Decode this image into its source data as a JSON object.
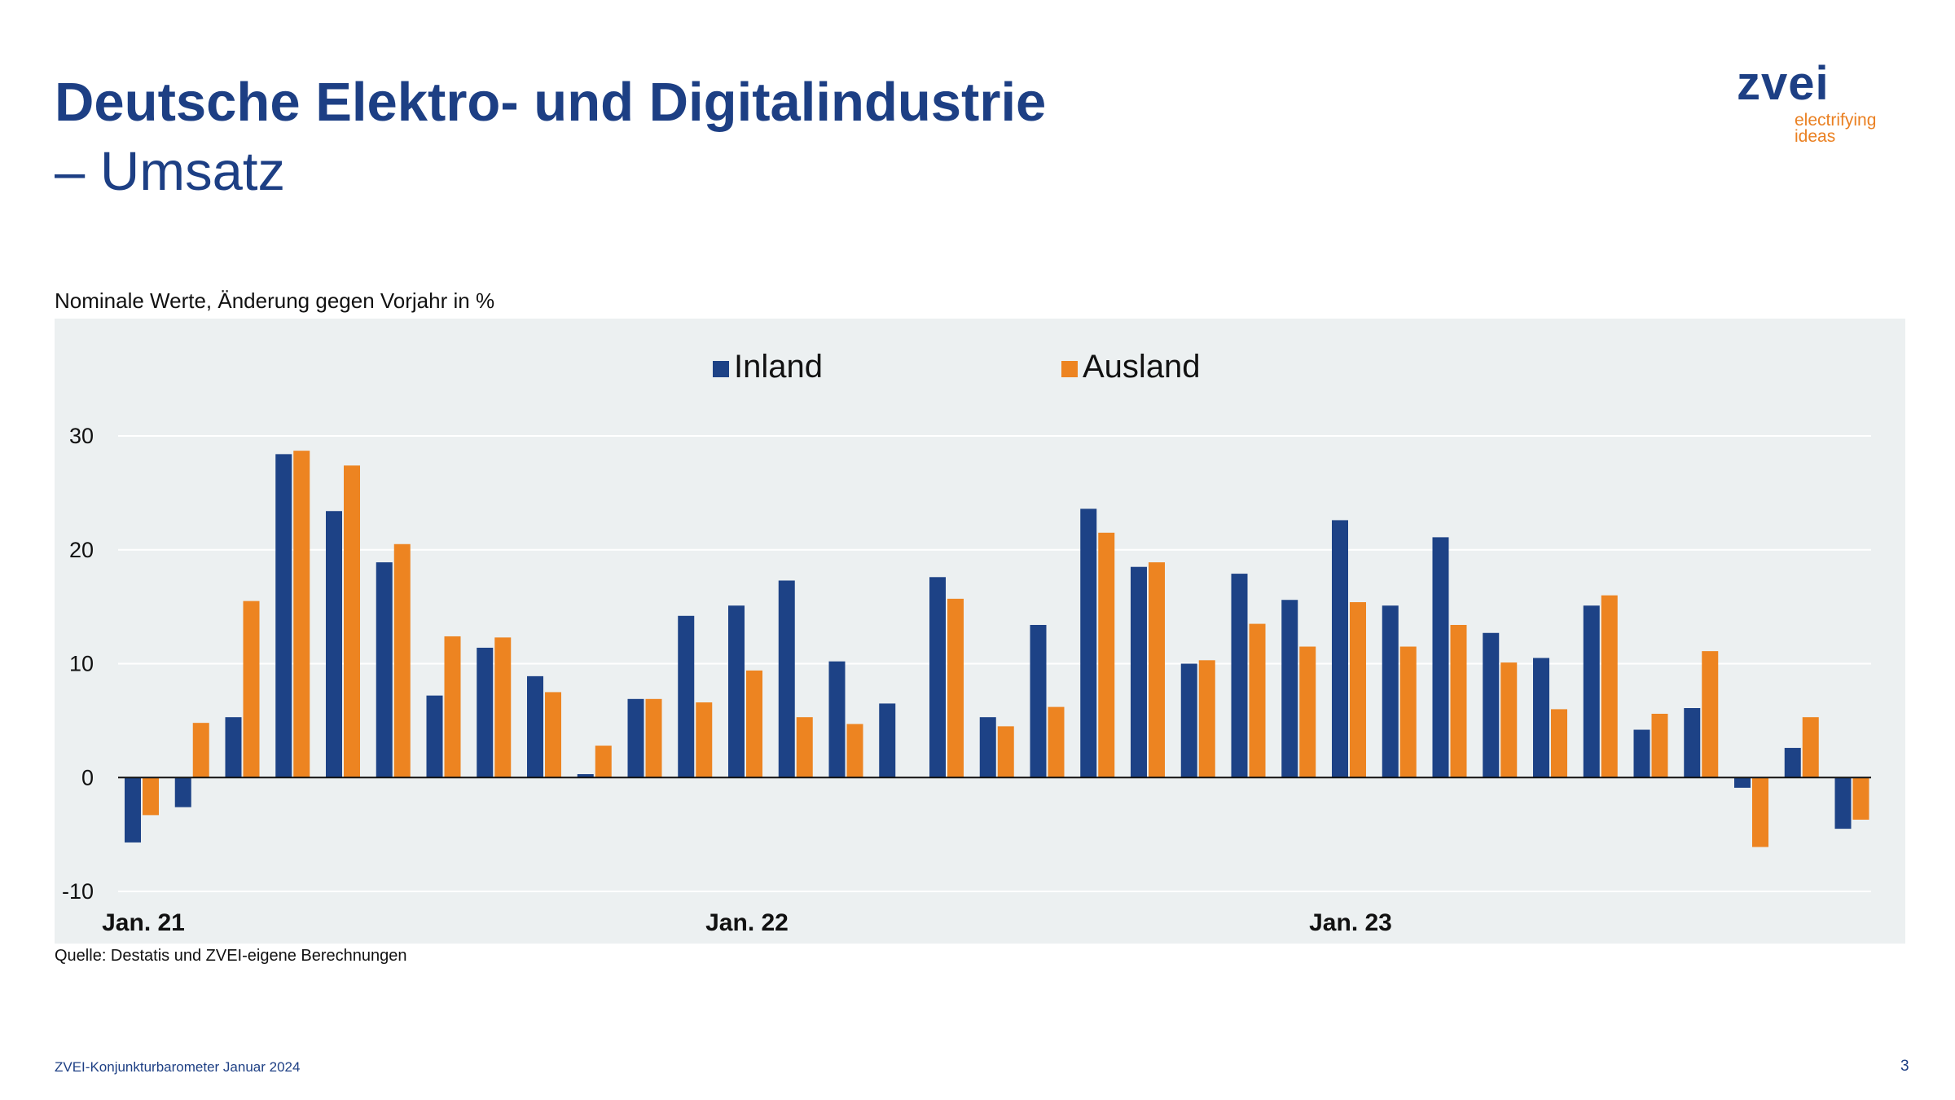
{
  "page": {
    "title_line1": "Deutsche Elektro- und Digitalindustrie",
    "title_line2": "– Umsatz",
    "subtitle": "Nominale Werte, Änderung gegen Vorjahr in %",
    "source": "Quelle: Destatis und ZVEI-eigene Berechnungen",
    "footer": "ZVEI-Konjunkturbarometer Januar 2024",
    "page_number": "3"
  },
  "logo": {
    "name": "zvei",
    "tagline_line1": "electrifying",
    "tagline_line2": "ideas"
  },
  "colors": {
    "inland": "#1d4286",
    "ausland": "#ed8421",
    "title": "#1d3f84",
    "logo_accent": "#ea8022",
    "panel_bg": "#ecf0f1"
  },
  "chart_data": {
    "type": "bar",
    "title": "",
    "xlabel": "",
    "ylabel": "",
    "ylim": [
      -10,
      30
    ],
    "yticks": [
      -10,
      0,
      10,
      20,
      30
    ],
    "grid": true,
    "legend_position": "top-center",
    "categories": [
      "2021-01",
      "2021-02",
      "2021-03",
      "2021-04",
      "2021-05",
      "2021-06",
      "2021-07",
      "2021-08",
      "2021-09",
      "2021-10",
      "2021-11",
      "2021-12",
      "2022-01",
      "2022-02",
      "2022-03",
      "2022-04",
      "2022-05",
      "2022-06",
      "2022-07",
      "2022-08",
      "2022-09",
      "2022-10",
      "2022-11",
      "2022-12",
      "2023-01",
      "2023-02",
      "2023-03",
      "2023-04",
      "2023-05",
      "2023-06",
      "2023-07",
      "2023-08",
      "2023-09",
      "2023-10",
      "2023-11",
      "2023-12"
    ],
    "x_tick_labels": [
      {
        "index": 0,
        "label": "Jan. 21"
      },
      {
        "index": 12,
        "label": "Jan. 22"
      },
      {
        "index": 24,
        "label": "Jan. 23"
      }
    ],
    "series": [
      {
        "name": "Inland",
        "values": [
          -5.7,
          -2.6,
          5.3,
          28.4,
          23.4,
          18.9,
          7.2,
          11.4,
          8.9,
          0.3,
          6.9,
          14.2,
          15.1,
          17.3,
          10.2,
          6.5,
          17.6,
          5.3,
          13.4,
          23.6,
          18.5,
          10.0,
          17.9,
          15.6,
          22.6,
          15.1,
          21.1,
          12.7,
          10.5,
          15.1,
          4.2,
          6.1,
          -0.9,
          2.6,
          -4.5,
          0.0
        ]
      },
      {
        "name": "Ausland",
        "values": [
          -3.3,
          4.8,
          15.5,
          28.7,
          27.4,
          20.5,
          12.4,
          12.3,
          7.5,
          2.8,
          6.9,
          6.6,
          9.4,
          5.3,
          4.7,
          0.0,
          15.7,
          4.5,
          6.2,
          21.5,
          18.9,
          10.3,
          13.5,
          11.5,
          15.4,
          11.5,
          13.4,
          10.1,
          6.0,
          16.0,
          5.6,
          11.1,
          -6.1,
          5.3,
          -3.7,
          0.0
        ]
      }
    ]
  }
}
